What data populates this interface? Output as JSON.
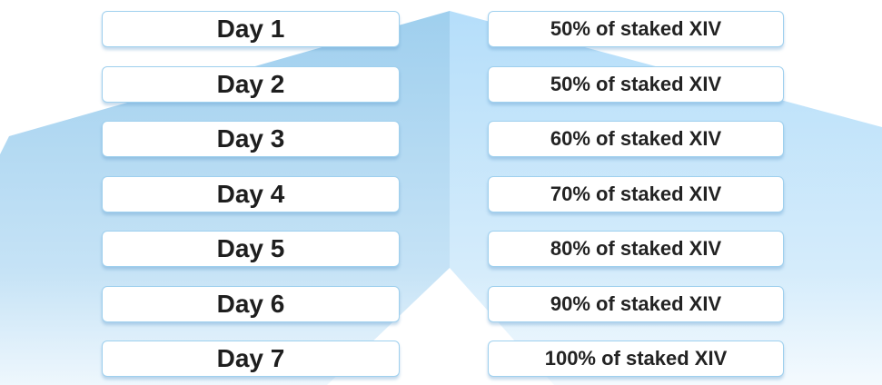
{
  "rows": [
    {
      "day": "Day 1",
      "reward": "50% of staked XIV"
    },
    {
      "day": "Day 2",
      "reward": "50% of staked XIV"
    },
    {
      "day": "Day 3",
      "reward": "60% of staked XIV"
    },
    {
      "day": "Day 4",
      "reward": "70% of staked XIV"
    },
    {
      "day": "Day 5",
      "reward": "80% of staked XIV"
    },
    {
      "day": "Day 6",
      "reward": "90% of staked XIV"
    },
    {
      "day": "Day 7",
      "reward": "100% of staked XIV"
    }
  ]
}
